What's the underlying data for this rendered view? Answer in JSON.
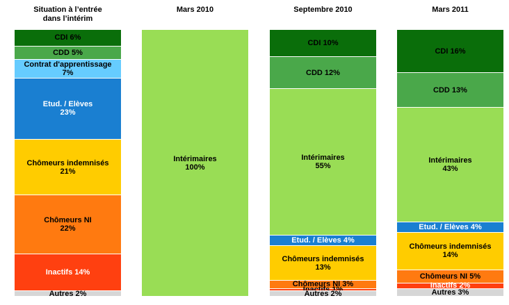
{
  "chart_data": {
    "type": "bar",
    "stacked": true,
    "columns": [
      {
        "title": "Situation à l’entrée\ndans l’intérim",
        "segments": [
          {
            "label": "CDI",
            "value": 6,
            "color": "#0a6e0a",
            "text": "CDI 6%",
            "light": false
          },
          {
            "label": "CDD",
            "value": 5,
            "color": "#4aa84a",
            "text": "CDD 5%",
            "light": false
          },
          {
            "label": "Contrat d'apprentissage",
            "value": 7,
            "color": "#66ccff",
            "text": "Contrat d'apprentissage\n7%",
            "light": false
          },
          {
            "label": "Etud. / Elèves",
            "value": 23,
            "color": "#1a7fd1",
            "text": "Etud. / Elèves\n23%",
            "light": true
          },
          {
            "label": "Chômeurs indemnisés",
            "value": 21,
            "color": "#ffcc00",
            "text": "Chômeurs indemnisés\n21%",
            "light": false
          },
          {
            "label": "Chômeurs NI",
            "value": 22,
            "color": "#ff7a10",
            "text": "Chômeurs NI\n22%",
            "light": false
          },
          {
            "label": "Inactifs",
            "value": 14,
            "color": "#ff4010",
            "text": "Inactifs 14%",
            "light": true
          },
          {
            "label": "Autres",
            "value": 2,
            "color": "#d6d6d6",
            "text": "Autres 2%",
            "light": false
          }
        ]
      },
      {
        "title": "Mars 2010",
        "segments": [
          {
            "label": "Intérimaires",
            "value": 100,
            "color": "#99dd55",
            "text": "Intérimaires\n100%",
            "light": false
          }
        ]
      },
      {
        "title": "Septembre 2010",
        "segments": [
          {
            "label": "CDI",
            "value": 10,
            "color": "#0a6e0a",
            "text": "CDI 10%",
            "light": false
          },
          {
            "label": "CDD",
            "value": 12,
            "color": "#4aa84a",
            "text": "CDD 12%",
            "light": false
          },
          {
            "label": "Intérimaires",
            "value": 55,
            "color": "#99dd55",
            "text": "Intérimaires\n55%",
            "light": false
          },
          {
            "label": "Etud. / Elèves",
            "value": 4,
            "color": "#1a7fd1",
            "text": "Etud. / Elèves 4%",
            "light": true
          },
          {
            "label": "Chômeurs indemnisés",
            "value": 13,
            "color": "#ffcc00",
            "text": "Chômeurs indemnisés\n13%",
            "light": false
          },
          {
            "label": "Chômeurs NI",
            "value": 3,
            "color": "#ff7a10",
            "text": "Chômeurs NI 3%",
            "light": false
          },
          {
            "label": "Inactifs",
            "value": 1,
            "color": "#ff4010",
            "text": "Inactifs 1%",
            "light": false
          },
          {
            "label": "Autres",
            "value": 2,
            "color": "#d6d6d6",
            "text": "Autres 2%",
            "light": false
          }
        ]
      },
      {
        "title": "Mars 2011",
        "segments": [
          {
            "label": "CDI",
            "value": 16,
            "color": "#0a6e0a",
            "text": "CDI 16%",
            "light": false
          },
          {
            "label": "CDD",
            "value": 13,
            "color": "#4aa84a",
            "text": "CDD 13%",
            "light": false
          },
          {
            "label": "Intérimaires",
            "value": 43,
            "color": "#99dd55",
            "text": "Intérimaires\n43%",
            "light": false
          },
          {
            "label": "Etud. / Elèves",
            "value": 4,
            "color": "#1a7fd1",
            "text": "Etud. / Elèves 4%",
            "light": true
          },
          {
            "label": "Chômeurs indemnisés",
            "value": 14,
            "color": "#ffcc00",
            "text": "Chômeurs indemnisés\n14%",
            "light": false
          },
          {
            "label": "Chômeurs NI",
            "value": 5,
            "color": "#ff7a10",
            "text": "Chômeurs NI 5%",
            "light": false
          },
          {
            "label": "Inactifs",
            "value": 2,
            "color": "#ff4010",
            "text": "Inactifs 2%",
            "light": true
          },
          {
            "label": "Autres",
            "value": 3,
            "color": "#d6d6d6",
            "text": "Autres 3%",
            "light": false
          }
        ]
      }
    ]
  }
}
